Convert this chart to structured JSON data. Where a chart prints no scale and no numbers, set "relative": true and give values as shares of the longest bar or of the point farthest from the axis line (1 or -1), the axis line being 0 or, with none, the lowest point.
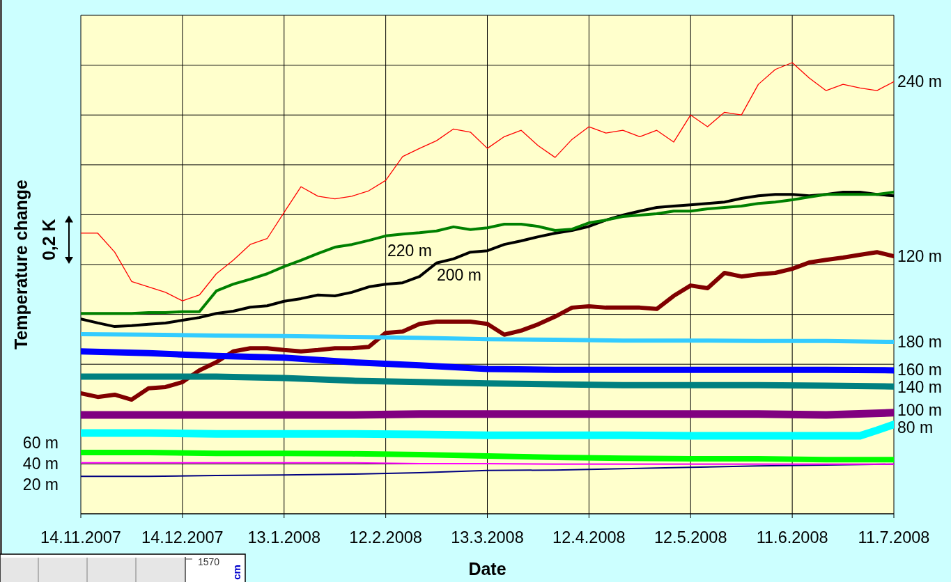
{
  "chart_data": {
    "type": "line",
    "xlabel": "Date",
    "ylabel": "Temperature change",
    "annotations": [
      "0,2 K",
      "1570",
      "cm"
    ],
    "relative": true,
    "grid": true,
    "legend": false,
    "marker": "none",
    "line_style": "solid",
    "xlim": [
      "2007-11-14",
      "2008-07-11"
    ],
    "xticks": [
      {
        "value": "2007-11-14",
        "label": "14.11.2007"
      },
      {
        "value": "2007-12-14",
        "label": "14.12.2007"
      },
      {
        "value": "2008-01-13",
        "label": "13.1.2008"
      },
      {
        "value": "2008-02-12",
        "label": "12.2.2008"
      },
      {
        "value": "2008-03-13",
        "label": "13.3.2008"
      },
      {
        "value": "2008-04-12",
        "label": "12.4.2008"
      },
      {
        "value": "2008-05-12",
        "label": "12.5.2008"
      },
      {
        "value": "2008-06-11",
        "label": "11.6.2008"
      },
      {
        "value": "2008-07-11",
        "label": "11.7.2008"
      }
    ],
    "x": [
      "2007-11-14",
      "2007-11-19",
      "2007-11-24",
      "2007-11-29",
      "2007-12-04",
      "2007-12-09",
      "2007-12-14",
      "2007-12-19",
      "2007-12-24",
      "2007-12-29",
      "2008-01-03",
      "2008-01-08",
      "2008-01-13",
      "2008-01-18",
      "2008-01-23",
      "2008-01-28",
      "2008-02-02",
      "2008-02-07",
      "2008-02-12",
      "2008-02-17",
      "2008-02-22",
      "2008-02-27",
      "2008-03-03",
      "2008-03-08",
      "2008-03-13",
      "2008-03-18",
      "2008-03-23",
      "2008-03-28",
      "2008-04-02",
      "2008-04-07",
      "2008-04-12",
      "2008-04-17",
      "2008-04-22",
      "2008-04-27",
      "2008-05-02",
      "2008-05-07",
      "2008-05-12",
      "2008-05-17",
      "2008-05-22",
      "2008-05-27",
      "2008-06-01",
      "2008-06-06",
      "2008-06-11",
      "2008-06-16",
      "2008-06-21",
      "2008-06-26",
      "2008-07-01",
      "2008-07-06",
      "2008-07-11"
    ],
    "series": [
      {
        "name": "240 m",
        "color": "#ff0000",
        "values": [
          0.622,
          0.622,
          0.58,
          0.515,
          0.503,
          0.491,
          0.472,
          0.485,
          0.532,
          0.562,
          0.597,
          0.61,
          0.668,
          0.725,
          0.704,
          0.698,
          0.704,
          0.716,
          0.739,
          0.792,
          0.81,
          0.827,
          0.853,
          0.846,
          0.81,
          0.836,
          0.85,
          0.816,
          0.79,
          0.83,
          0.858,
          0.844,
          0.85,
          0.836,
          0.85,
          0.824,
          0.884,
          0.858,
          0.89,
          0.884,
          0.952,
          0.985,
          1,
          0.966,
          0.938,
          0.952,
          0.944,
          0.938,
          0.958
        ]
      },
      {
        "name": "220 m",
        "color": "#008000",
        "values": [
          0.444,
          0.444,
          0.444,
          0.444,
          0.446,
          0.446,
          0.448,
          0.448,
          0.494,
          0.509,
          0.52,
          0.532,
          0.548,
          0.562,
          0.577,
          0.591,
          0.597,
          0.606,
          0.616,
          0.62,
          0.623,
          0.627,
          0.636,
          0.63,
          0.634,
          0.642,
          0.642,
          0.637,
          0.628,
          0.631,
          0.645,
          0.651,
          0.659,
          0.662,
          0.665,
          0.671,
          0.671,
          0.676,
          0.679,
          0.682,
          0.688,
          0.691,
          0.696,
          0.702,
          0.708,
          0.708,
          0.708,
          0.708,
          0.713
        ]
      },
      {
        "name": "200 m",
        "color": "#000000",
        "values": [
          0.432,
          0.423,
          0.415,
          0.417,
          0.42,
          0.423,
          0.429,
          0.435,
          0.444,
          0.449,
          0.458,
          0.461,
          0.471,
          0.477,
          0.485,
          0.483,
          0.491,
          0.503,
          0.509,
          0.512,
          0.526,
          0.556,
          0.565,
          0.58,
          0.583,
          0.597,
          0.605,
          0.614,
          0.622,
          0.628,
          0.637,
          0.651,
          0.662,
          0.671,
          0.679,
          0.682,
          0.685,
          0.688,
          0.691,
          0.699,
          0.705,
          0.708,
          0.708,
          0.705,
          0.708,
          0.713,
          0.713,
          0.708,
          0.705
        ]
      },
      {
        "name": "180 m",
        "color": "#33ccff",
        "x": [
          "2007-11-14",
          "2007-12-04",
          "2007-12-24",
          "2008-01-13",
          "2008-02-02",
          "2008-02-22",
          "2008-03-13",
          "2008-04-02",
          "2008-04-22",
          "2008-05-12",
          "2008-06-01",
          "2008-06-21",
          "2008-07-11"
        ],
        "values": [
          0.398,
          0.397,
          0.395,
          0.394,
          0.392,
          0.39,
          0.387,
          0.386,
          0.384,
          0.384,
          0.383,
          0.383,
          0.381
        ]
      },
      {
        "name": "160 m",
        "color": "#0000ff",
        "x": [
          "2007-11-14",
          "2007-12-04",
          "2007-12-24",
          "2008-01-13",
          "2008-02-02",
          "2008-02-22",
          "2008-03-13",
          "2008-04-02",
          "2008-04-22",
          "2008-05-12",
          "2008-06-01",
          "2008-06-21",
          "2008-07-11"
        ],
        "values": [
          0.36,
          0.356,
          0.35,
          0.346,
          0.336,
          0.329,
          0.321,
          0.319,
          0.319,
          0.319,
          0.319,
          0.319,
          0.318
        ]
      },
      {
        "name": "140 m",
        "color": "#008080",
        "x": [
          "2007-11-14",
          "2007-12-04",
          "2007-12-24",
          "2008-01-13",
          "2008-02-02",
          "2008-02-22",
          "2008-03-13",
          "2008-04-02",
          "2008-04-22",
          "2008-05-12",
          "2008-06-01",
          "2008-06-21",
          "2008-07-11"
        ],
        "values": [
          0.304,
          0.304,
          0.304,
          0.301,
          0.295,
          0.292,
          0.289,
          0.287,
          0.285,
          0.285,
          0.285,
          0.284,
          0.282
        ]
      },
      {
        "name": "120 m",
        "color": "#800000",
        "values": [
          0.267,
          0.259,
          0.264,
          0.253,
          0.278,
          0.281,
          0.292,
          0.318,
          0.336,
          0.36,
          0.367,
          0.367,
          0.363,
          0.36,
          0.363,
          0.367,
          0.367,
          0.37,
          0.401,
          0.404,
          0.421,
          0.426,
          0.426,
          0.426,
          0.421,
          0.397,
          0.406,
          0.42,
          0.437,
          0.457,
          0.46,
          0.457,
          0.457,
          0.457,
          0.454,
          0.483,
          0.506,
          0.5,
          0.534,
          0.526,
          0.531,
          0.534,
          0.543,
          0.557,
          0.563,
          0.568,
          0.574,
          0.58,
          0.571
        ]
      },
      {
        "name": "100 m",
        "color": "#800080",
        "x": [
          "2007-11-14",
          "2007-12-04",
          "2007-12-24",
          "2008-01-13",
          "2008-02-02",
          "2008-02-22",
          "2008-03-13",
          "2008-04-02",
          "2008-04-22",
          "2008-05-12",
          "2008-06-01",
          "2008-06-21",
          "2008-07-11"
        ],
        "values": [
          0.219,
          0.219,
          0.219,
          0.219,
          0.219,
          0.221,
          0.221,
          0.221,
          0.221,
          0.221,
          0.221,
          0.219,
          0.224
        ]
      },
      {
        "name": "80 m",
        "color": "#00ffff",
        "x": [
          "2007-11-14",
          "2007-12-04",
          "2007-12-24",
          "2008-01-13",
          "2008-02-02",
          "2008-02-22",
          "2008-03-13",
          "2008-04-02",
          "2008-04-22",
          "2008-05-12",
          "2008-06-01",
          "2008-06-21",
          "2008-07-01",
          "2008-07-06",
          "2008-07-11"
        ],
        "values": [
          0.179,
          0.179,
          0.177,
          0.177,
          0.177,
          0.176,
          0.174,
          0.174,
          0.174,
          0.173,
          0.173,
          0.173,
          0.173,
          0.185,
          0.198
        ]
      },
      {
        "name": "60 m",
        "color": "#00ff00",
        "x": [
          "2007-11-14",
          "2007-12-04",
          "2007-12-24",
          "2008-01-13",
          "2008-02-02",
          "2008-02-22",
          "2008-03-13",
          "2008-04-02",
          "2008-04-22",
          "2008-05-12",
          "2008-06-01",
          "2008-06-21",
          "2008-07-11"
        ],
        "values": [
          0.136,
          0.136,
          0.134,
          0.134,
          0.133,
          0.131,
          0.128,
          0.125,
          0.123,
          0.122,
          0.122,
          0.12,
          0.12
        ]
      },
      {
        "name": "40 m",
        "color": "#ff00ff",
        "x": [
          "2007-11-14",
          "2007-12-04",
          "2007-12-24",
          "2008-01-13",
          "2008-02-02",
          "2008-02-22",
          "2008-03-13",
          "2008-04-02",
          "2008-04-22",
          "2008-05-12",
          "2008-06-01",
          "2008-06-21",
          "2008-07-11"
        ],
        "values": [
          0.113,
          0.113,
          0.113,
          0.113,
          0.113,
          0.111,
          0.111,
          0.11,
          0.11,
          0.11,
          0.11,
          0.11,
          0.11
        ]
      },
      {
        "name": "20 m",
        "color": "#000080",
        "x": [
          "2007-11-14",
          "2007-12-04",
          "2007-12-24",
          "2008-01-13",
          "2008-02-02",
          "2008-02-22",
          "2008-03-13",
          "2008-04-02",
          "2008-04-22",
          "2008-05-12",
          "2008-06-01",
          "2008-06-21",
          "2008-07-11"
        ],
        "values": [
          0.083,
          0.083,
          0.085,
          0.086,
          0.088,
          0.091,
          0.096,
          0.097,
          0.1,
          0.103,
          0.106,
          0.108,
          0.11
        ]
      }
    ]
  }
}
